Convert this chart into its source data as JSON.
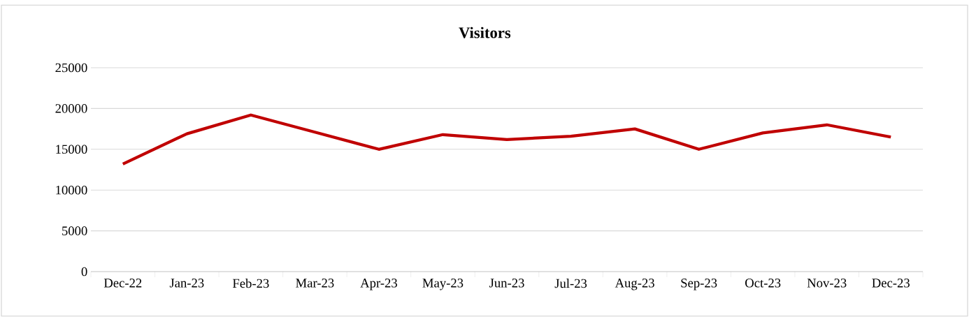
{
  "chart_data": {
    "type": "line",
    "title": "Visitors",
    "categories": [
      "Dec-22",
      "Jan-23",
      "Feb-23",
      "Mar-23",
      "Apr-23",
      "May-23",
      "Jun-23",
      "Jul-23",
      "Aug-23",
      "Sep-23",
      "Oct-23",
      "Nov-23",
      "Dec-23"
    ],
    "values": [
      13200,
      16900,
      19200,
      17100,
      15000,
      16800,
      16200,
      16600,
      17500,
      15000,
      17000,
      18000,
      16500
    ],
    "color": "#c00000",
    "ylim": [
      0,
      25000
    ],
    "yticks": [
      0,
      5000,
      10000,
      15000,
      20000,
      25000
    ],
    "grid": "y",
    "line_style": "solid"
  }
}
